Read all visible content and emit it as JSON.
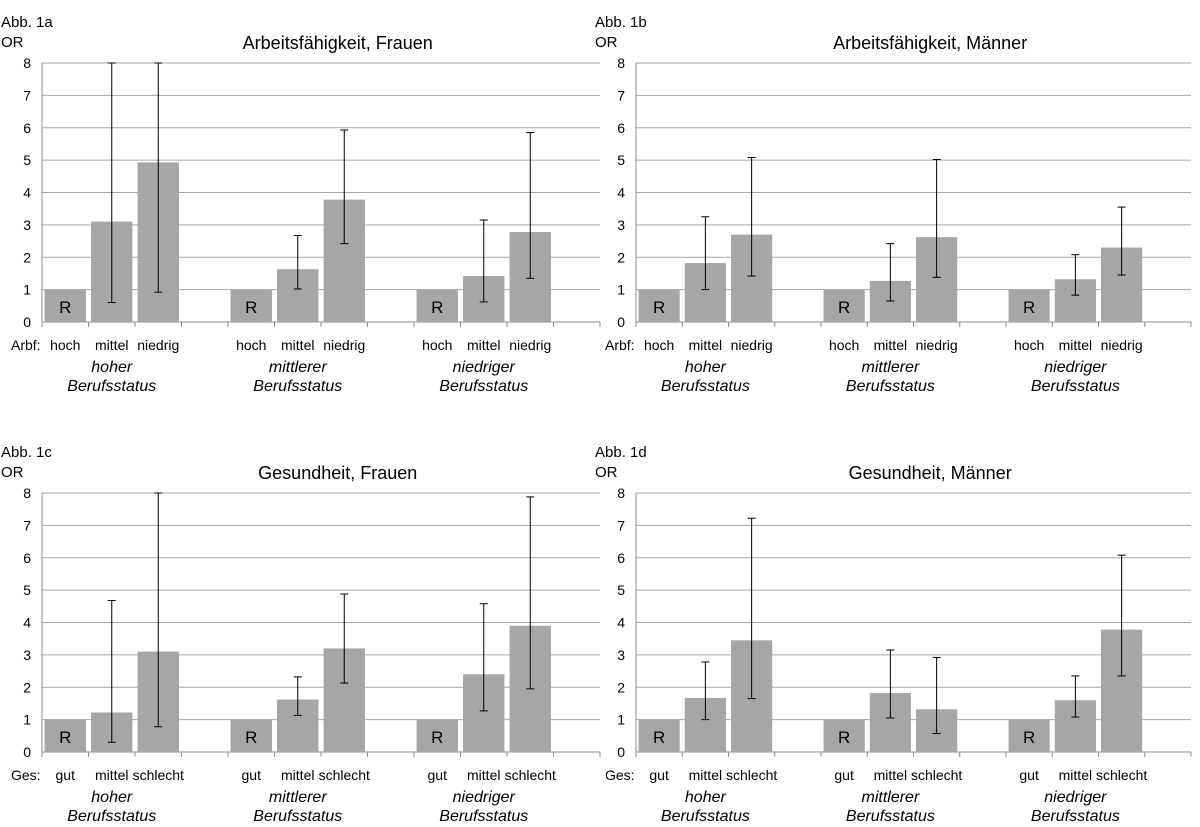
{
  "chart_data": [
    {
      "type": "bar",
      "panel": "Abb. 1a",
      "title": "Arbeitsfähigkeit, Frauen",
      "ylabel": "OR",
      "ylim": [
        0,
        8
      ],
      "yticks": [
        "0",
        "1",
        "2",
        "3",
        "4",
        "5",
        "6",
        "7",
        "8"
      ],
      "row_label": "Arbf:",
      "reference_label": "R",
      "groups": [
        {
          "line1": "hoher",
          "line2": "Berufsstatus",
          "bars": [
            {
              "category": "hoch",
              "value": 1,
              "reference": true
            },
            {
              "category": "mittel",
              "value": 3.1,
              "ci": [
                0.6,
                8
              ]
            },
            {
              "category": "niedrig",
              "value": 4.93,
              "ci": [
                0.92,
                8
              ]
            }
          ]
        },
        {
          "line1": "mittlerer",
          "line2": "Berufsstatus",
          "bars": [
            {
              "category": "hoch",
              "value": 1,
              "reference": true
            },
            {
              "category": "mittel",
              "value": 1.63,
              "ci": [
                1.02,
                2.67
              ]
            },
            {
              "category": "niedrig",
              "value": 3.78,
              "ci": [
                2.42,
                5.93
              ]
            }
          ]
        },
        {
          "line1": "niedriger",
          "line2": "Berufsstatus",
          "bars": [
            {
              "category": "hoch",
              "value": 1,
              "reference": true
            },
            {
              "category": "mittel",
              "value": 1.42,
              "ci": [
                0.62,
                3.15
              ]
            },
            {
              "category": "niedrig",
              "value": 2.78,
              "ci": [
                1.35,
                5.85
              ]
            }
          ]
        }
      ]
    },
    {
      "type": "bar",
      "panel": "Abb. 1b",
      "title": "Arbeitsfähigkeit, Männer",
      "ylabel": "OR",
      "ylim": [
        0,
        8
      ],
      "yticks": [
        "0",
        "1",
        "2",
        "3",
        "4",
        "5",
        "6",
        "7",
        "8"
      ],
      "row_label": "Arbf:",
      "reference_label": "R",
      "groups": [
        {
          "line1": "hoher",
          "line2": "Berufsstatus",
          "bars": [
            {
              "category": "hoch",
              "value": 1,
              "reference": true
            },
            {
              "category": "mittel",
              "value": 1.82,
              "ci": [
                1.0,
                3.25
              ]
            },
            {
              "category": "niedrig",
              "value": 2.7,
              "ci": [
                1.42,
                5.08
              ]
            }
          ]
        },
        {
          "line1": "mittlerer",
          "line2": "Berufsstatus",
          "bars": [
            {
              "category": "hoch",
              "value": 1,
              "reference": true
            },
            {
              "category": "mittel",
              "value": 1.27,
              "ci": [
                0.65,
                2.42
              ]
            },
            {
              "category": "niedrig",
              "value": 2.62,
              "ci": [
                1.38,
                5.02
              ]
            }
          ]
        },
        {
          "line1": "niedriger",
          "line2": "Berufsstatus",
          "bars": [
            {
              "category": "hoch",
              "value": 1,
              "reference": true
            },
            {
              "category": "mittel",
              "value": 1.32,
              "ci": [
                0.83,
                2.08
              ]
            },
            {
              "category": "niedrig",
              "value": 2.3,
              "ci": [
                1.45,
                3.55
              ]
            }
          ]
        }
      ]
    },
    {
      "type": "bar",
      "panel": "Abb. 1c",
      "title": "Gesundheit, Frauen",
      "ylabel": "OR",
      "ylim": [
        0,
        8
      ],
      "yticks": [
        "0",
        "1",
        "2",
        "3",
        "4",
        "5",
        "6",
        "7",
        "8"
      ],
      "row_label": "Ges:",
      "reference_label": "R",
      "groups": [
        {
          "line1": "hoher",
          "line2": "Berufsstatus",
          "bars": [
            {
              "category": "gut",
              "value": 1,
              "reference": true
            },
            {
              "category": "mittel",
              "value": 1.22,
              "ci": [
                0.3,
                4.68
              ]
            },
            {
              "category": "schlecht",
              "value": 3.1,
              "ci": [
                0.78,
                8
              ]
            }
          ]
        },
        {
          "line1": "mittlerer",
          "line2": "Berufsstatus",
          "bars": [
            {
              "category": "gut",
              "value": 1,
              "reference": true
            },
            {
              "category": "mittel",
              "value": 1.62,
              "ci": [
                1.13,
                2.32
              ]
            },
            {
              "category": "schlecht",
              "value": 3.2,
              "ci": [
                2.13,
                4.88
              ]
            }
          ]
        },
        {
          "line1": "niedriger",
          "line2": "Berufsstatus",
          "bars": [
            {
              "category": "gut",
              "value": 1,
              "reference": true
            },
            {
              "category": "mittel",
              "value": 2.4,
              "ci": [
                1.27,
                4.58
              ]
            },
            {
              "category": "schlecht",
              "value": 3.9,
              "ci": [
                1.95,
                7.88
              ]
            }
          ]
        }
      ]
    },
    {
      "type": "bar",
      "panel": "Abb. 1d",
      "title": "Gesundheit, Männer",
      "ylabel": "OR",
      "ylim": [
        0,
        8
      ],
      "yticks": [
        "0",
        "1",
        "2",
        "3",
        "4",
        "5",
        "6",
        "7",
        "8"
      ],
      "row_label": "Ges:",
      "reference_label": "R",
      "groups": [
        {
          "line1": "hoher",
          "line2": "Berufsstatus",
          "bars": [
            {
              "category": "gut",
              "value": 1,
              "reference": true
            },
            {
              "category": "mittel",
              "value": 1.67,
              "ci": [
                1.0,
                2.78
              ]
            },
            {
              "category": "schlecht",
              "value": 3.45,
              "ci": [
                1.65,
                7.22
              ]
            }
          ]
        },
        {
          "line1": "mittlerer",
          "line2": "Berufsstatus",
          "bars": [
            {
              "category": "gut",
              "value": 1,
              "reference": true
            },
            {
              "category": "mittel",
              "value": 1.82,
              "ci": [
                1.05,
                3.15
              ]
            },
            {
              "category": "schlecht",
              "value": 1.32,
              "ci": [
                0.57,
                2.92
              ]
            }
          ]
        },
        {
          "line1": "niedriger",
          "line2": "Berufsstatus",
          "bars": [
            {
              "category": "gut",
              "value": 1,
              "reference": true
            },
            {
              "category": "mittel",
              "value": 1.6,
              "ci": [
                1.08,
                2.35
              ]
            },
            {
              "category": "schlecht",
              "value": 3.78,
              "ci": [
                2.35,
                6.08
              ]
            }
          ]
        }
      ]
    }
  ]
}
